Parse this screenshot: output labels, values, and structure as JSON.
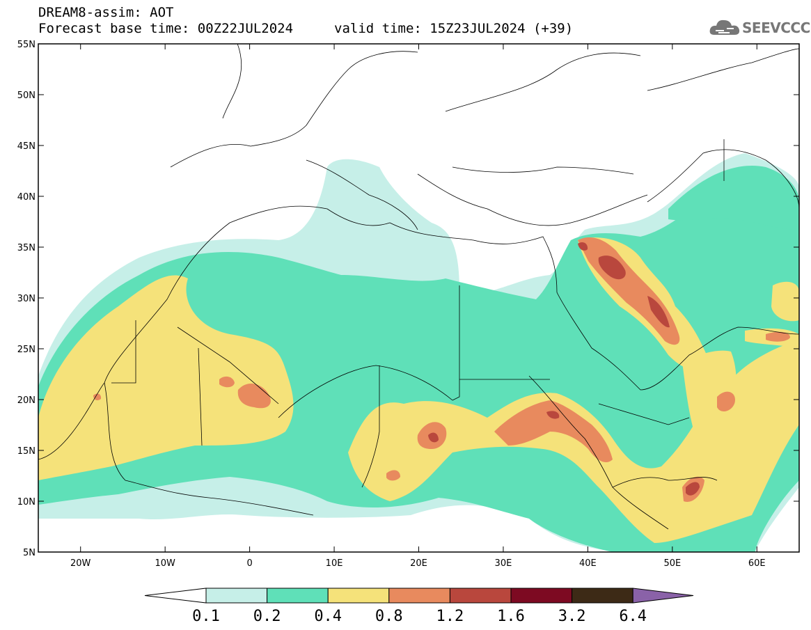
{
  "header": {
    "title": "DREAM8-assim: AOT",
    "base_time": "Forecast base time: 00Z22JUL2024",
    "valid_time": "valid time: 15Z23JUL2024 (+39)"
  },
  "logo": {
    "text": "SEEVCCC",
    "icon": "cloud-icon"
  },
  "map": {
    "lat_labels": [
      "55N",
      "50N",
      "45N",
      "40N",
      "35N",
      "30N",
      "25N",
      "20N",
      "15N",
      "10N",
      "5N"
    ],
    "lon_labels": [
      "20W",
      "10W",
      "0",
      "10E",
      "20E",
      "30E",
      "40E",
      "50E",
      "60E"
    ],
    "lon_range": [
      -25,
      65
    ],
    "lat_range": [
      5,
      55
    ]
  },
  "colorbar": {
    "labels": [
      "0.1",
      "0.2",
      "0.4",
      "0.8",
      "1.2",
      "1.6",
      "3.2",
      "6.4"
    ],
    "colors": [
      "#ffffff",
      "#c6efe8",
      "#5fe0b8",
      "#f5e27a",
      "#e88a5e",
      "#b9473d",
      "#7d0a22",
      "#3d2a16",
      "#8a62a8"
    ]
  },
  "chart_data": {
    "type": "heatmap",
    "title": "DREAM8-assim: AOT",
    "variable": "AOT",
    "levels": [
      0.1,
      0.2,
      0.4,
      0.8,
      1.2,
      1.6,
      3.2,
      6.4
    ],
    "xlim": [
      -25,
      65
    ],
    "ylim": [
      5,
      55
    ],
    "x_ticks": [
      -20,
      -10,
      0,
      10,
      20,
      30,
      40,
      50,
      60
    ],
    "y_ticks": [
      5,
      10,
      15,
      20,
      25,
      30,
      35,
      40,
      45,
      50,
      55
    ]
  }
}
